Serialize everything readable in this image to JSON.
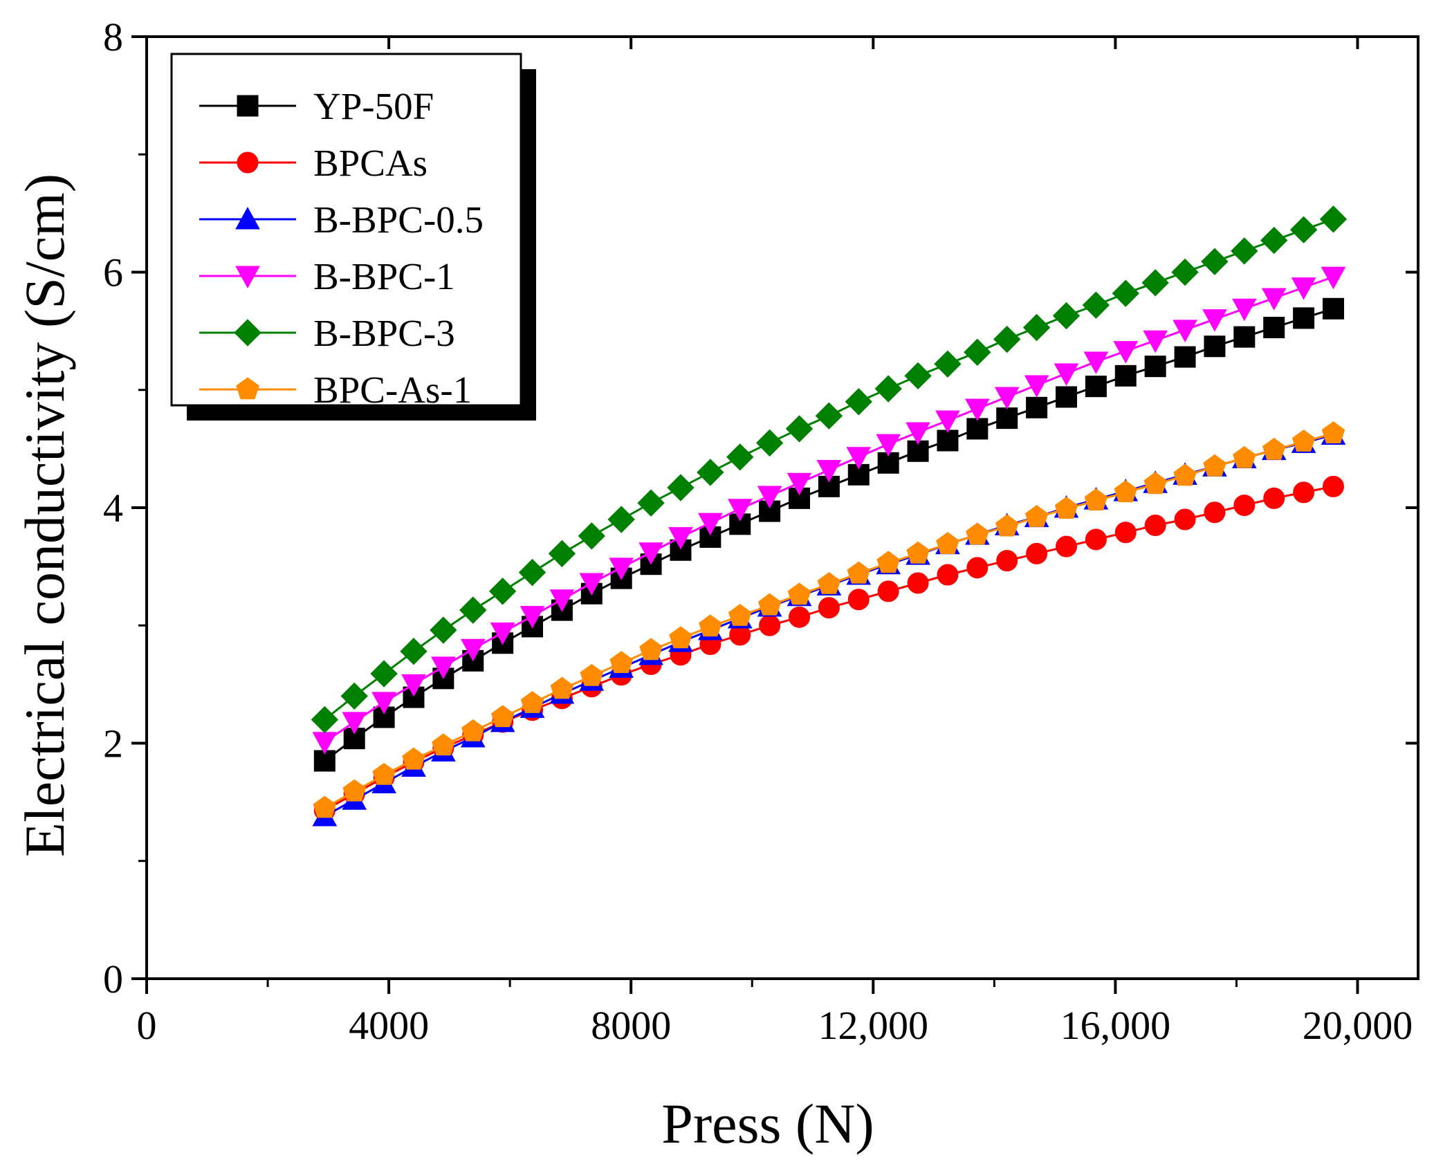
{
  "chart_data": {
    "type": "line",
    "title": "",
    "xlabel": "Press (N)",
    "ylabel": "Electrical conductivity (S/cm)",
    "xlim": [
      0,
      21000
    ],
    "ylim": [
      0,
      8
    ],
    "xticks": [
      0,
      4000,
      8000,
      12000,
      16000,
      20000
    ],
    "xtick_labels": [
      "0",
      "4000",
      "8000",
      "12,000",
      "16,000",
      "20,000"
    ],
    "yticks": [
      0,
      2,
      4,
      6,
      8
    ],
    "ytick_labels": [
      "0",
      "2",
      "4",
      "6",
      "8"
    ],
    "grid": false,
    "legend_position": "top-left",
    "x": [
      2940,
      3430,
      3920,
      4410,
      4900,
      5390,
      5880,
      6370,
      6860,
      7350,
      7840,
      8330,
      8820,
      9310,
      9800,
      10290,
      10780,
      11270,
      11760,
      12250,
      12740,
      13230,
      13720,
      14210,
      14700,
      15190,
      15680,
      16170,
      16660,
      17150,
      17640,
      18130,
      18620,
      19110,
      19600
    ],
    "series": [
      {
        "name": "YP-50F",
        "color": "#000000",
        "marker": "square",
        "values": [
          1.85,
          2.04,
          2.22,
          2.39,
          2.55,
          2.7,
          2.85,
          2.99,
          3.13,
          3.27,
          3.4,
          3.52,
          3.64,
          3.75,
          3.86,
          3.97,
          4.08,
          4.18,
          4.28,
          4.38,
          4.48,
          4.57,
          4.67,
          4.76,
          4.85,
          4.94,
          5.03,
          5.12,
          5.2,
          5.28,
          5.37,
          5.45,
          5.53,
          5.61,
          5.69
        ]
      },
      {
        "name": "BPCAs",
        "color": "#ff0000",
        "marker": "circle",
        "values": [
          1.43,
          1.57,
          1.71,
          1.84,
          1.96,
          2.07,
          2.18,
          2.28,
          2.38,
          2.48,
          2.58,
          2.67,
          2.75,
          2.84,
          2.92,
          3.0,
          3.07,
          3.15,
          3.22,
          3.29,
          3.36,
          3.43,
          3.49,
          3.55,
          3.61,
          3.67,
          3.73,
          3.79,
          3.85,
          3.9,
          3.96,
          4.02,
          4.08,
          4.13,
          4.18
        ]
      },
      {
        "name": "B-BPC-0.5",
        "color": "#0000ff",
        "marker": "triangle-up",
        "values": [
          1.38,
          1.52,
          1.66,
          1.8,
          1.93,
          2.05,
          2.18,
          2.3,
          2.42,
          2.53,
          2.64,
          2.75,
          2.86,
          2.96,
          3.06,
          3.16,
          3.25,
          3.34,
          3.43,
          3.52,
          3.6,
          3.69,
          3.77,
          3.85,
          3.92,
          4.0,
          4.07,
          4.14,
          4.21,
          4.28,
          4.35,
          4.42,
          4.49,
          4.55,
          4.62
        ]
      },
      {
        "name": "B-BPC-1",
        "color": "#ff00ff",
        "marker": "triangle-down",
        "values": [
          2.01,
          2.18,
          2.35,
          2.5,
          2.65,
          2.8,
          2.94,
          3.08,
          3.22,
          3.36,
          3.49,
          3.62,
          3.75,
          3.87,
          3.99,
          4.1,
          4.21,
          4.32,
          4.43,
          4.54,
          4.64,
          4.74,
          4.84,
          4.94,
          5.04,
          5.14,
          5.24,
          5.33,
          5.42,
          5.51,
          5.6,
          5.69,
          5.78,
          5.87,
          5.96
        ]
      },
      {
        "name": "B-BPC-3",
        "color": "#008000",
        "marker": "diamond",
        "values": [
          2.2,
          2.4,
          2.59,
          2.78,
          2.96,
          3.13,
          3.29,
          3.45,
          3.61,
          3.76,
          3.9,
          4.04,
          4.17,
          4.3,
          4.43,
          4.55,
          4.67,
          4.78,
          4.9,
          5.01,
          5.12,
          5.22,
          5.32,
          5.43,
          5.53,
          5.63,
          5.72,
          5.82,
          5.91,
          6.0,
          6.09,
          6.18,
          6.27,
          6.36,
          6.45
        ]
      },
      {
        "name": "BPC-As-1",
        "color": "#ff8c00",
        "marker": "pentagon",
        "values": [
          1.45,
          1.59,
          1.73,
          1.86,
          1.98,
          2.1,
          2.22,
          2.34,
          2.46,
          2.57,
          2.68,
          2.79,
          2.89,
          2.99,
          3.08,
          3.17,
          3.26,
          3.35,
          3.44,
          3.53,
          3.61,
          3.69,
          3.77,
          3.84,
          3.92,
          3.99,
          4.06,
          4.13,
          4.2,
          4.27,
          4.35,
          4.42,
          4.49,
          4.56,
          4.63
        ]
      }
    ]
  }
}
